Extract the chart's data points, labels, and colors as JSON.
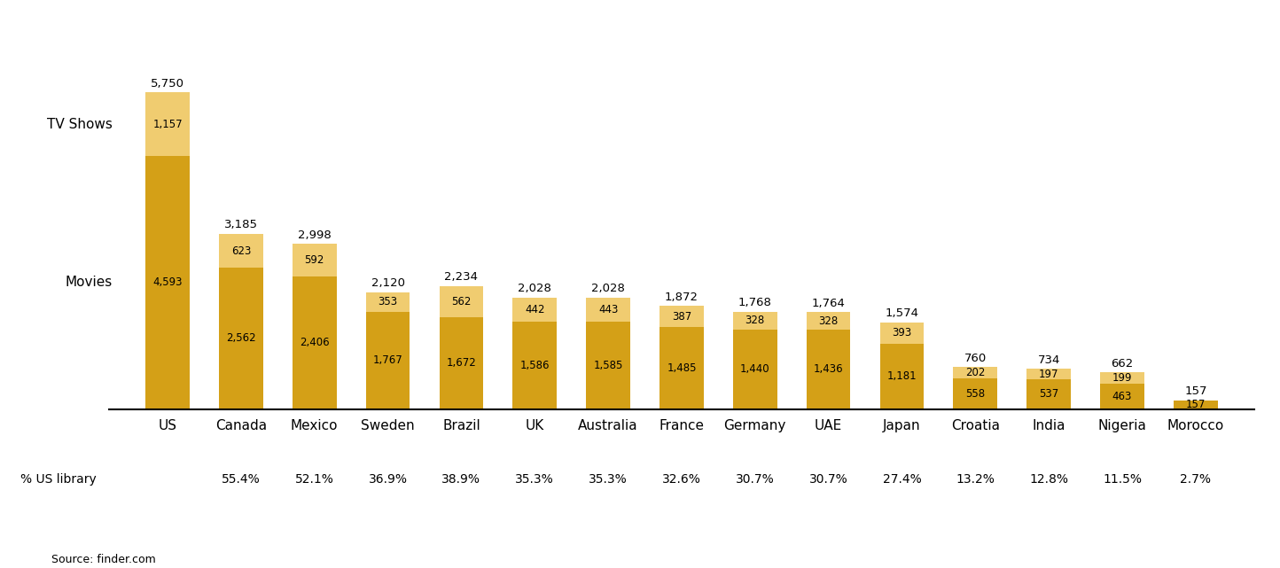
{
  "countries": [
    "US",
    "Canada",
    "Mexico",
    "Sweden",
    "Brazil",
    "UK",
    "Australia",
    "France",
    "Germany",
    "UAE",
    "Japan",
    "Croatia",
    "India",
    "Nigeria",
    "Morocco"
  ],
  "movies": [
    4593,
    2562,
    2406,
    1767,
    1672,
    1586,
    1585,
    1485,
    1440,
    1436,
    1181,
    558,
    537,
    463,
    157
  ],
  "tv_shows": [
    1157,
    623,
    592,
    353,
    562,
    442,
    443,
    387,
    328,
    328,
    393,
    202,
    197,
    199,
    0
  ],
  "totals": [
    5750,
    3185,
    2998,
    2120,
    2234,
    2028,
    2028,
    1872,
    1768,
    1764,
    1574,
    760,
    734,
    662,
    157
  ],
  "pct_us": [
    "",
    "55.4%",
    "52.1%",
    "36.9%",
    "38.9%",
    "35.3%",
    "35.3%",
    "32.6%",
    "30.7%",
    "30.7%",
    "27.4%",
    "13.2%",
    "12.8%",
    "11.5%",
    "2.7%"
  ],
  "movies_color": "#D4A017",
  "tv_color": "#F0CC70",
  "background_color": "#ffffff",
  "source_text": "Source: finder.com",
  "pct_label": "% US library",
  "movies_label": "Movies",
  "tv_label": "TV Shows",
  "bar_width": 0.6,
  "ylim": [
    0,
    6400
  ]
}
